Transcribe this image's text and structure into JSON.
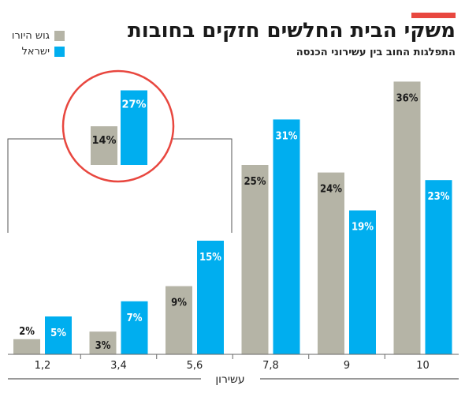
{
  "colors": {
    "accent": "#e8473f",
    "gush": "#b5b4a6",
    "israel": "#00aeef",
    "text": "#1a1a1a",
    "circle": "#e8473f"
  },
  "chart_data": {
    "type": "bar",
    "title": "משקי הבית החלשים חזקים בחובות",
    "subtitle": "התפלגות החוב בין עשירוני הכנסה",
    "xlabel": "עשירון",
    "ylabel": "",
    "ylim": [
      0,
      40
    ],
    "grid": false,
    "legend_position": "top-left",
    "value_suffix": "%",
    "categories": [
      "1,2",
      "3,4",
      "5,6",
      "7,8",
      "9",
      "10"
    ],
    "series": [
      {
        "name": "גוש היורו",
        "color": "#b5b4a6",
        "values": [
          2,
          3,
          9,
          25,
          24,
          36
        ]
      },
      {
        "name": "ישראל",
        "color": "#00aeef",
        "values": [
          5,
          7,
          15,
          31,
          19,
          23
        ]
      }
    ],
    "inset": {
      "description_values": {
        "gush": 14,
        "israel": 27
      },
      "covers_categories": [
        "1,2",
        "3,4",
        "5,6"
      ]
    }
  }
}
